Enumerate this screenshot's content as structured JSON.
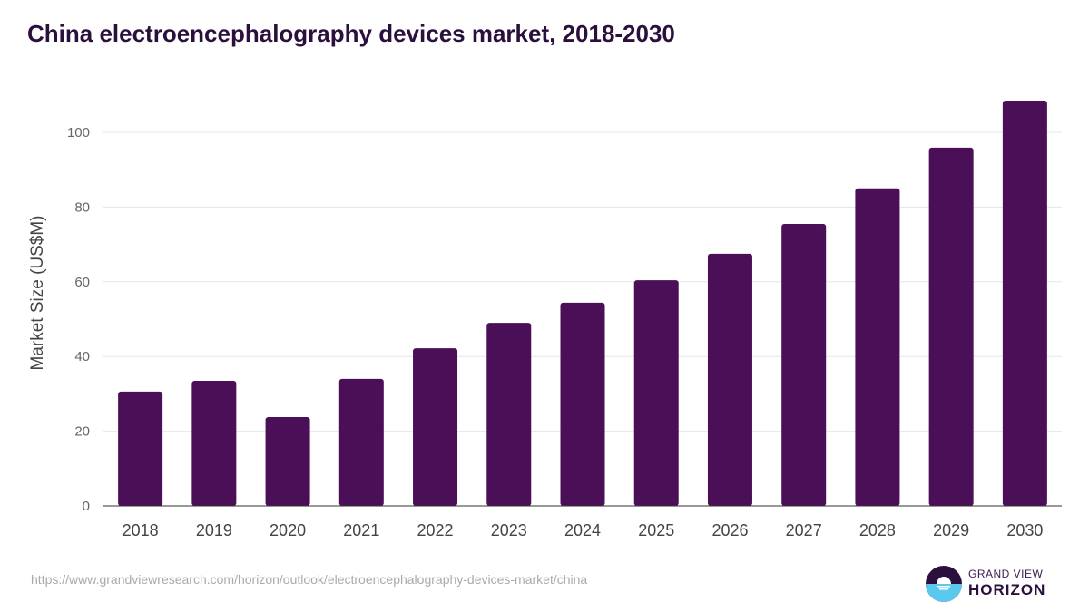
{
  "chart_data": {
    "type": "bar",
    "title": "China electroencephalography devices market, 2018-2030",
    "xlabel": "",
    "ylabel": "Market Size (US$M)",
    "categories": [
      "2018",
      "2019",
      "2020",
      "2021",
      "2022",
      "2023",
      "2024",
      "2025",
      "2026",
      "2027",
      "2028",
      "2029",
      "2030"
    ],
    "values": [
      30.6,
      33.5,
      23.8,
      34.0,
      42.2,
      49.0,
      54.4,
      60.4,
      67.5,
      75.5,
      85.0,
      95.9,
      108.5
    ],
    "ylim": [
      0,
      110
    ],
    "yticks": [
      0,
      20,
      40,
      60,
      80,
      100
    ],
    "grid": true,
    "bar_color": "#4b0f58"
  },
  "footer": {
    "source": "https://www.grandviewresearch.com/horizon/outlook/electroencephalography-devices-market/china",
    "logo_line1": "GRAND VIEW",
    "logo_line2": "HORIZON"
  }
}
